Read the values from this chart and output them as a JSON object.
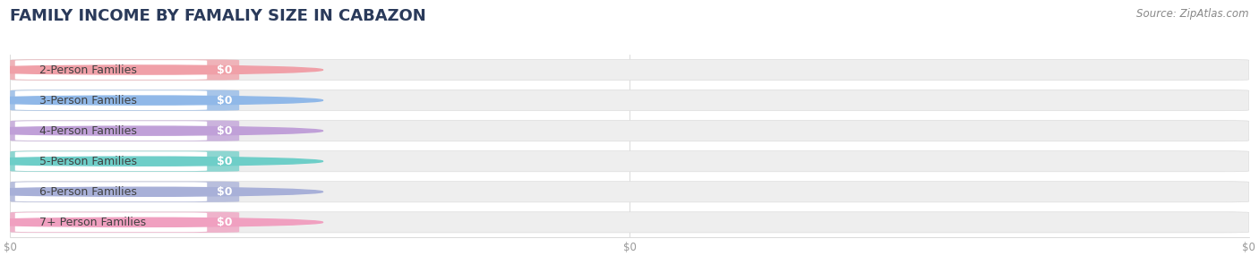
{
  "title": "FAMILY INCOME BY FAMALIY SIZE IN CABAZON",
  "source": "Source: ZipAtlas.com",
  "categories": [
    "2-Person Families",
    "3-Person Families",
    "4-Person Families",
    "5-Person Families",
    "6-Person Families",
    "7+ Person Families"
  ],
  "values": [
    0,
    0,
    0,
    0,
    0,
    0
  ],
  "bar_colors": [
    "#f0a0a8",
    "#90b8e8",
    "#c0a0d8",
    "#6ecec8",
    "#a8b0d8",
    "#f0a0c0"
  ],
  "bg_color": "#ffffff",
  "bar_bg_color": "#eeeeee",
  "bar_bg_inner_color": "#f8f8f8",
  "title_color": "#2a3a5a",
  "label_color": "#404040",
  "axis_label_color": "#999999",
  "value_label": "$0",
  "bar_height": 0.68,
  "title_fontsize": 13,
  "label_fontsize": 9,
  "source_fontsize": 8.5,
  "x_tick_positions": [
    0.0,
    0.5,
    1.0
  ],
  "x_tick_labels": [
    "$0",
    "$0",
    "$0"
  ]
}
